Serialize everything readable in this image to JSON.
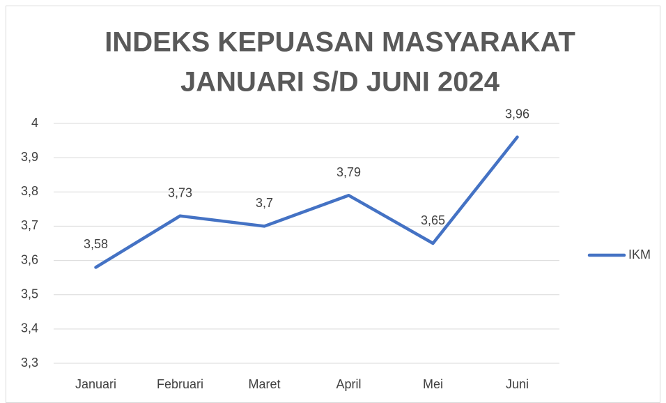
{
  "chart_data": {
    "type": "line",
    "title": [
      "INDEKS KEPUASAN MASYARAKAT",
      "JANUARI S/D JUNI 2024"
    ],
    "categories": [
      "Januari",
      "Februari",
      "Maret",
      "April",
      "Mei",
      "Juni"
    ],
    "series": [
      {
        "name": "IKM",
        "color": "#4472c4",
        "values": [
          3.58,
          3.73,
          3.7,
          3.79,
          3.65,
          3.96
        ],
        "value_labels": [
          "3,58",
          "3,73",
          "3,7",
          "3,79",
          "3,65",
          "3,96"
        ]
      }
    ],
    "ylim": [
      3.3,
      4
    ],
    "yticks": [
      {
        "value": 3.3,
        "label": "3,3"
      },
      {
        "value": 3.4,
        "label": "3,4"
      },
      {
        "value": 3.5,
        "label": "3,5"
      },
      {
        "value": 3.6,
        "label": "3,6"
      },
      {
        "value": 3.7,
        "label": "3,7"
      },
      {
        "value": 3.8,
        "label": "3,8"
      },
      {
        "value": 3.9,
        "label": "3,9"
      },
      4
    ],
    "grid": true,
    "legend": "right"
  }
}
